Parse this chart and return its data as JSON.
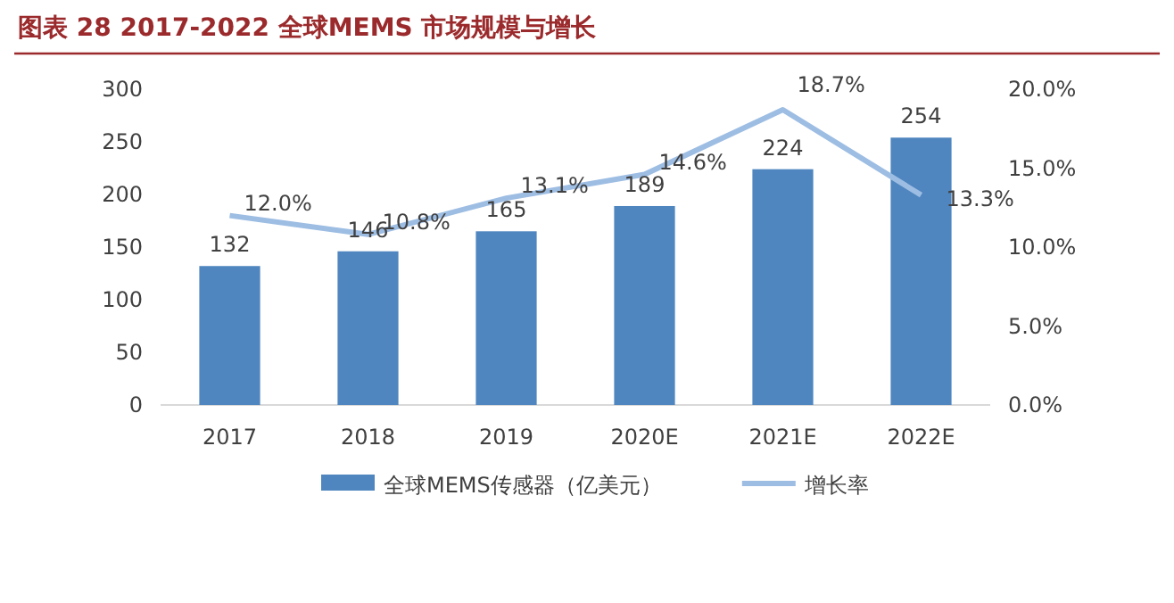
{
  "chart_data": {
    "type": "bar",
    "title": "图表 28 2017-2022 全球MEMS 市场规模与增长",
    "categories": [
      "2017",
      "2018",
      "2019",
      "2020E",
      "2021E",
      "2022E"
    ],
    "series": [
      {
        "name": "全球MEMS传感器（亿美元）",
        "color": "#4f86bf",
        "values": [
          132,
          146,
          165,
          189,
          224,
          254
        ],
        "value_labels": [
          "132",
          "146",
          "165",
          "189",
          "224",
          "254"
        ]
      },
      {
        "name": "增长率",
        "type": "line",
        "axis": "y2",
        "color": "#9dbde3",
        "values": [
          12.0,
          10.8,
          13.1,
          14.6,
          18.7,
          13.3
        ],
        "value_labels": [
          "12.0%",
          "10.8%",
          "13.1%",
          "14.6%",
          "18.7%",
          "13.3%"
        ]
      }
    ],
    "ylim": [
      0,
      300
    ],
    "yticks": [
      0,
      50,
      100,
      150,
      200,
      250,
      300
    ],
    "y2lim": [
      0,
      20
    ],
    "y2ticks": [
      {
        "value": 0,
        "label": "0.0%"
      },
      {
        "value": 5,
        "label": "5.0%"
      },
      {
        "value": 10,
        "label": "10.0%"
      },
      {
        "value": 15,
        "label": "15.0%"
      },
      {
        "value": 20,
        "label": "20.0%"
      }
    ],
    "legend": "bottom",
    "grid": false,
    "marker": "none"
  }
}
